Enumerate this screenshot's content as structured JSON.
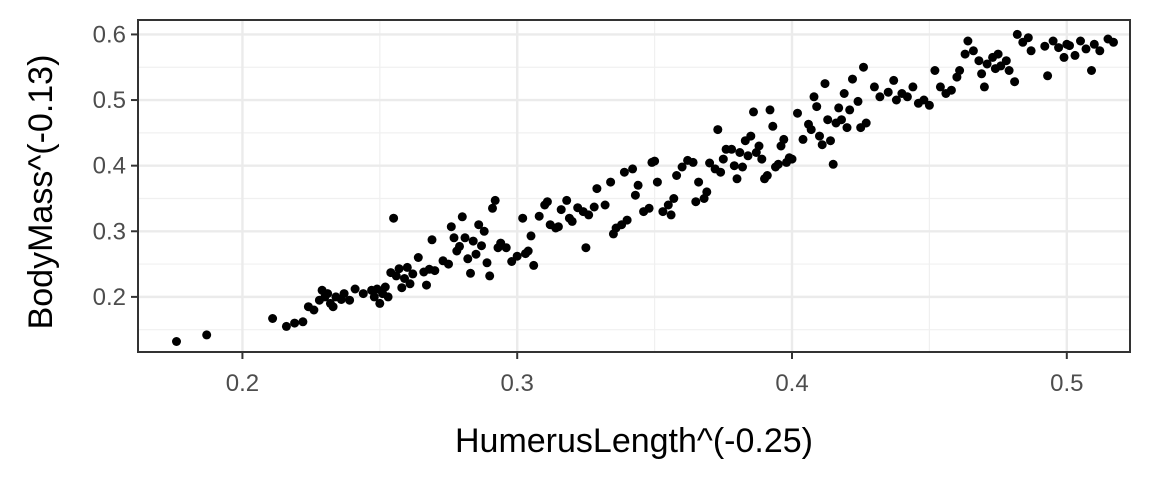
{
  "chart_data": {
    "type": "scatter",
    "title": "",
    "xlabel": "HumerusLength^(-0.25)",
    "ylabel": "BodyMass^(-0.13)",
    "xlim": [
      0.162,
      0.523
    ],
    "ylim": [
      0.116,
      0.622
    ],
    "x_ticks": [
      0.2,
      0.3,
      0.4,
      0.5
    ],
    "x_tick_labels": [
      "0.2",
      "0.3",
      "0.4",
      "0.5"
    ],
    "y_ticks": [
      0.2,
      0.3,
      0.4,
      0.5,
      0.6
    ],
    "y_tick_labels": [
      "0.2",
      "0.3",
      "0.4",
      "0.5",
      "0.6"
    ],
    "grid": true,
    "point_color": "#000000",
    "points": [
      [
        0.176,
        0.132
      ],
      [
        0.187,
        0.142
      ],
      [
        0.211,
        0.167
      ],
      [
        0.216,
        0.155
      ],
      [
        0.219,
        0.16
      ],
      [
        0.222,
        0.162
      ],
      [
        0.224,
        0.185
      ],
      [
        0.226,
        0.18
      ],
      [
        0.228,
        0.195
      ],
      [
        0.229,
        0.21
      ],
      [
        0.23,
        0.2
      ],
      [
        0.231,
        0.205
      ],
      [
        0.232,
        0.19
      ],
      [
        0.233,
        0.185
      ],
      [
        0.234,
        0.2
      ],
      [
        0.236,
        0.196
      ],
      [
        0.237,
        0.205
      ],
      [
        0.239,
        0.195
      ],
      [
        0.241,
        0.212
      ],
      [
        0.244,
        0.205
      ],
      [
        0.247,
        0.21
      ],
      [
        0.248,
        0.2
      ],
      [
        0.249,
        0.212
      ],
      [
        0.25,
        0.19
      ],
      [
        0.251,
        0.205
      ],
      [
        0.252,
        0.215
      ],
      [
        0.253,
        0.2
      ],
      [
        0.254,
        0.237
      ],
      [
        0.255,
        0.32
      ],
      [
        0.256,
        0.232
      ],
      [
        0.257,
        0.243
      ],
      [
        0.258,
        0.214
      ],
      [
        0.259,
        0.228
      ],
      [
        0.26,
        0.245
      ],
      [
        0.261,
        0.22
      ],
      [
        0.262,
        0.235
      ],
      [
        0.264,
        0.26
      ],
      [
        0.266,
        0.238
      ],
      [
        0.267,
        0.218
      ],
      [
        0.268,
        0.242
      ],
      [
        0.269,
        0.287
      ],
      [
        0.27,
        0.24
      ],
      [
        0.273,
        0.255
      ],
      [
        0.275,
        0.25
      ],
      [
        0.276,
        0.307
      ],
      [
        0.277,
        0.29
      ],
      [
        0.278,
        0.27
      ],
      [
        0.279,
        0.277
      ],
      [
        0.28,
        0.322
      ],
      [
        0.281,
        0.29
      ],
      [
        0.282,
        0.258
      ],
      [
        0.283,
        0.236
      ],
      [
        0.284,
        0.285
      ],
      [
        0.285,
        0.265
      ],
      [
        0.286,
        0.31
      ],
      [
        0.287,
        0.278
      ],
      [
        0.288,
        0.3
      ],
      [
        0.289,
        0.252
      ],
      [
        0.29,
        0.232
      ],
      [
        0.291,
        0.335
      ],
      [
        0.292,
        0.347
      ],
      [
        0.293,
        0.275
      ],
      [
        0.294,
        0.282
      ],
      [
        0.296,
        0.275
      ],
      [
        0.298,
        0.254
      ],
      [
        0.3,
        0.262
      ],
      [
        0.302,
        0.32
      ],
      [
        0.303,
        0.266
      ],
      [
        0.304,
        0.27
      ],
      [
        0.305,
        0.293
      ],
      [
        0.306,
        0.248
      ],
      [
        0.308,
        0.323
      ],
      [
        0.31,
        0.34
      ],
      [
        0.311,
        0.345
      ],
      [
        0.312,
        0.31
      ],
      [
        0.314,
        0.305
      ],
      [
        0.315,
        0.307
      ],
      [
        0.316,
        0.333
      ],
      [
        0.318,
        0.347
      ],
      [
        0.319,
        0.32
      ],
      [
        0.32,
        0.315
      ],
      [
        0.322,
        0.336
      ],
      [
        0.324,
        0.33
      ],
      [
        0.325,
        0.275
      ],
      [
        0.326,
        0.325
      ],
      [
        0.328,
        0.337
      ],
      [
        0.329,
        0.365
      ],
      [
        0.332,
        0.34
      ],
      [
        0.334,
        0.375
      ],
      [
        0.335,
        0.296
      ],
      [
        0.336,
        0.305
      ],
      [
        0.338,
        0.31
      ],
      [
        0.339,
        0.39
      ],
      [
        0.34,
        0.317
      ],
      [
        0.342,
        0.395
      ],
      [
        0.343,
        0.355
      ],
      [
        0.344,
        0.37
      ],
      [
        0.346,
        0.33
      ],
      [
        0.348,
        0.335
      ],
      [
        0.349,
        0.405
      ],
      [
        0.35,
        0.407
      ],
      [
        0.351,
        0.375
      ],
      [
        0.353,
        0.33
      ],
      [
        0.355,
        0.34
      ],
      [
        0.356,
        0.325
      ],
      [
        0.357,
        0.35
      ],
      [
        0.358,
        0.385
      ],
      [
        0.36,
        0.398
      ],
      [
        0.362,
        0.408
      ],
      [
        0.364,
        0.405
      ],
      [
        0.365,
        0.345
      ],
      [
        0.366,
        0.375
      ],
      [
        0.368,
        0.35
      ],
      [
        0.369,
        0.36
      ],
      [
        0.37,
        0.404
      ],
      [
        0.372,
        0.395
      ],
      [
        0.373,
        0.455
      ],
      [
        0.374,
        0.39
      ],
      [
        0.375,
        0.41
      ],
      [
        0.376,
        0.425
      ],
      [
        0.378,
        0.425
      ],
      [
        0.379,
        0.4
      ],
      [
        0.38,
        0.38
      ],
      [
        0.381,
        0.42
      ],
      [
        0.382,
        0.398
      ],
      [
        0.383,
        0.438
      ],
      [
        0.384,
        0.415
      ],
      [
        0.385,
        0.445
      ],
      [
        0.386,
        0.482
      ],
      [
        0.387,
        0.42
      ],
      [
        0.388,
        0.43
      ],
      [
        0.389,
        0.41
      ],
      [
        0.39,
        0.38
      ],
      [
        0.391,
        0.385
      ],
      [
        0.392,
        0.485
      ],
      [
        0.393,
        0.46
      ],
      [
        0.394,
        0.398
      ],
      [
        0.395,
        0.402
      ],
      [
        0.396,
        0.43
      ],
      [
        0.397,
        0.44
      ],
      [
        0.398,
        0.405
      ],
      [
        0.399,
        0.412
      ],
      [
        0.4,
        0.41
      ],
      [
        0.402,
        0.48
      ],
      [
        0.404,
        0.44
      ],
      [
        0.406,
        0.463
      ],
      [
        0.407,
        0.455
      ],
      [
        0.408,
        0.505
      ],
      [
        0.409,
        0.49
      ],
      [
        0.41,
        0.445
      ],
      [
        0.411,
        0.432
      ],
      [
        0.412,
        0.525
      ],
      [
        0.413,
        0.47
      ],
      [
        0.414,
        0.438
      ],
      [
        0.415,
        0.402
      ],
      [
        0.416,
        0.465
      ],
      [
        0.417,
        0.488
      ],
      [
        0.418,
        0.47
      ],
      [
        0.419,
        0.51
      ],
      [
        0.42,
        0.458
      ],
      [
        0.421,
        0.485
      ],
      [
        0.422,
        0.532
      ],
      [
        0.424,
        0.498
      ],
      [
        0.425,
        0.458
      ],
      [
        0.426,
        0.55
      ],
      [
        0.427,
        0.465
      ],
      [
        0.43,
        0.52
      ],
      [
        0.432,
        0.505
      ],
      [
        0.435,
        0.512
      ],
      [
        0.437,
        0.53
      ],
      [
        0.438,
        0.5
      ],
      [
        0.44,
        0.51
      ],
      [
        0.442,
        0.505
      ],
      [
        0.444,
        0.52
      ],
      [
        0.446,
        0.495
      ],
      [
        0.448,
        0.5
      ],
      [
        0.45,
        0.492
      ],
      [
        0.452,
        0.545
      ],
      [
        0.454,
        0.52
      ],
      [
        0.456,
        0.51
      ],
      [
        0.458,
        0.515
      ],
      [
        0.46,
        0.535
      ],
      [
        0.461,
        0.545
      ],
      [
        0.463,
        0.57
      ],
      [
        0.464,
        0.59
      ],
      [
        0.466,
        0.575
      ],
      [
        0.468,
        0.56
      ],
      [
        0.469,
        0.54
      ],
      [
        0.47,
        0.52
      ],
      [
        0.471,
        0.555
      ],
      [
        0.473,
        0.565
      ],
      [
        0.474,
        0.548
      ],
      [
        0.475,
        0.57
      ],
      [
        0.476,
        0.552
      ],
      [
        0.478,
        0.56
      ],
      [
        0.479,
        0.545
      ],
      [
        0.481,
        0.528
      ],
      [
        0.482,
        0.6
      ],
      [
        0.484,
        0.588
      ],
      [
        0.486,
        0.595
      ],
      [
        0.487,
        0.575
      ],
      [
        0.492,
        0.582
      ],
      [
        0.493,
        0.537
      ],
      [
        0.495,
        0.59
      ],
      [
        0.497,
        0.58
      ],
      [
        0.499,
        0.565
      ],
      [
        0.5,
        0.585
      ],
      [
        0.501,
        0.583
      ],
      [
        0.503,
        0.568
      ],
      [
        0.505,
        0.59
      ],
      [
        0.507,
        0.578
      ],
      [
        0.509,
        0.545
      ],
      [
        0.51,
        0.585
      ],
      [
        0.512,
        0.575
      ],
      [
        0.515,
        0.593
      ],
      [
        0.517,
        0.588
      ]
    ]
  }
}
